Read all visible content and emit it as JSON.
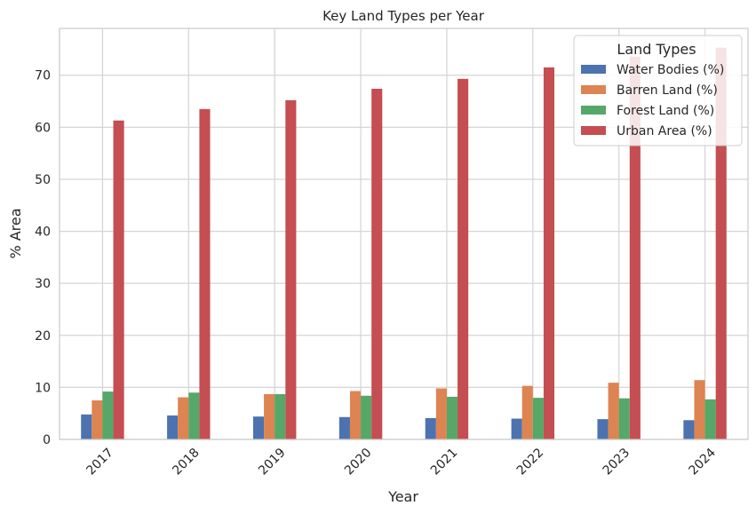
{
  "chart_data": {
    "type": "bar",
    "title": "Key Land Types per Year",
    "xlabel": "Year",
    "ylabel": "% Area",
    "categories": [
      "2017",
      "2018",
      "2019",
      "2020",
      "2021",
      "2022",
      "2023",
      "2024"
    ],
    "series": [
      {
        "name": "Water Bodies (%)",
        "color": "#4c72b0",
        "values": [
          4.8,
          4.6,
          4.4,
          4.3,
          4.1,
          4.0,
          3.9,
          3.7
        ]
      },
      {
        "name": "Barren Land (%)",
        "color": "#dd8452",
        "values": [
          7.5,
          8.1,
          8.7,
          9.3,
          9.8,
          10.3,
          10.9,
          11.4
        ]
      },
      {
        "name": "Forest Land (%)",
        "color": "#55a868",
        "values": [
          9.2,
          9.0,
          8.7,
          8.4,
          8.2,
          8.0,
          7.9,
          7.7
        ]
      },
      {
        "name": "Urban Area (%)",
        "color": "#c44e52",
        "values": [
          61.3,
          63.5,
          65.2,
          67.4,
          69.3,
          71.5,
          73.6,
          75.3
        ]
      }
    ],
    "ylim": [
      0,
      79
    ],
    "yticks": [
      0,
      10,
      20,
      30,
      40,
      50,
      60,
      70
    ],
    "grid": true,
    "legend": {
      "title": "Land Types",
      "position": "top-right"
    }
  }
}
